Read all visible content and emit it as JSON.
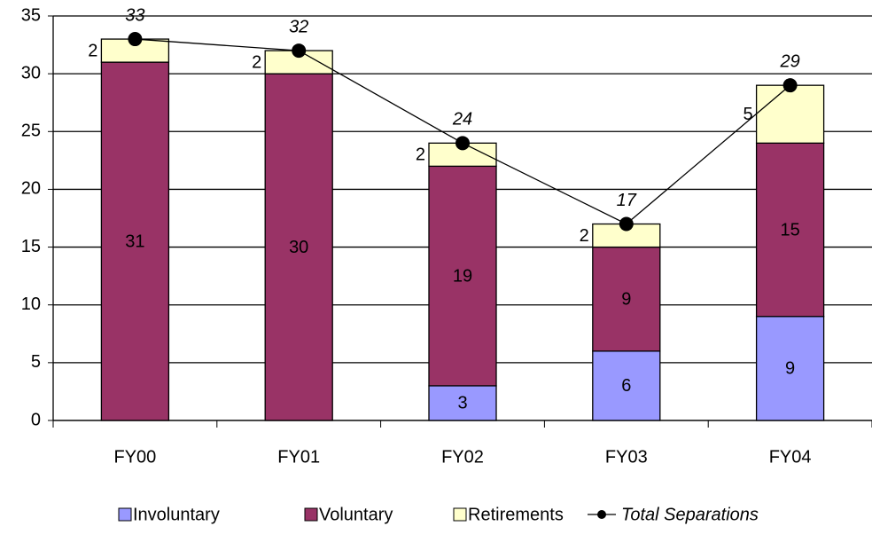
{
  "chart_data": {
    "type": "bar",
    "stacked": true,
    "categories": [
      "FY00",
      "FY01",
      "FY02",
      "FY03",
      "FY04"
    ],
    "series": [
      {
        "name": "Involuntary",
        "color": "#9999ff",
        "values": [
          0,
          0,
          3,
          6,
          9
        ]
      },
      {
        "name": "Voluntary",
        "color": "#993366",
        "values": [
          31,
          30,
          19,
          9,
          15
        ]
      },
      {
        "name": "Retirements",
        "color": "#ffffcc",
        "values": [
          2,
          2,
          2,
          2,
          5
        ]
      }
    ],
    "line": {
      "name": "Total Separations",
      "color": "#000000",
      "values": [
        33,
        32,
        24,
        17,
        29
      ]
    },
    "ylim": [
      0,
      35
    ],
    "yticks": [
      0,
      5,
      10,
      15,
      20,
      25,
      30,
      35
    ],
    "grid": true
  }
}
